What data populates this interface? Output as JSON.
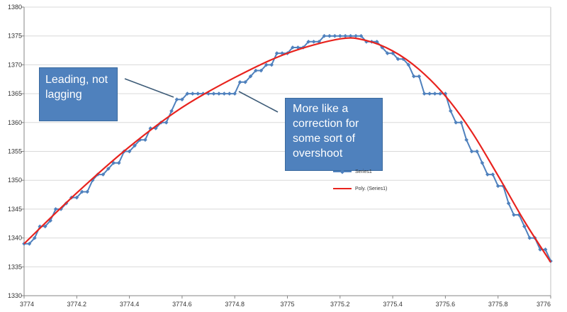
{
  "chart_data": {
    "type": "line",
    "title": "",
    "xlabel": "",
    "ylabel": "",
    "xlim": [
      3774,
      3776
    ],
    "ylim": [
      1330,
      1380
    ],
    "x_ticks": [
      "3774",
      "3774.2",
      "3774.4",
      "3774.6",
      "3774.8",
      "3775",
      "3775.2",
      "3775.4",
      "3775.6",
      "3775.8",
      "3776"
    ],
    "y_ticks": [
      "1330",
      "1335",
      "1340",
      "1345",
      "1350",
      "1355",
      "1360",
      "1365",
      "1370",
      "1375",
      "1380"
    ],
    "grid": "horizontal",
    "legend_position": "center-right",
    "series": [
      {
        "name": "Series1",
        "color": "#4f81bd",
        "marker": "diamond",
        "points": [
          [
            3774.0,
            1339
          ],
          [
            3774.02,
            1339
          ],
          [
            3774.04,
            1340
          ],
          [
            3774.06,
            1342
          ],
          [
            3774.08,
            1342
          ],
          [
            3774.1,
            1343
          ],
          [
            3774.12,
            1345
          ],
          [
            3774.14,
            1345
          ],
          [
            3774.16,
            1346
          ],
          [
            3774.18,
            1347
          ],
          [
            3774.2,
            1347
          ],
          [
            3774.22,
            1348
          ],
          [
            3774.24,
            1348
          ],
          [
            3774.26,
            1350
          ],
          [
            3774.28,
            1351
          ],
          [
            3774.3,
            1351
          ],
          [
            3774.32,
            1352
          ],
          [
            3774.34,
            1353
          ],
          [
            3774.36,
            1353
          ],
          [
            3774.38,
            1355
          ],
          [
            3774.4,
            1355
          ],
          [
            3774.42,
            1356
          ],
          [
            3774.44,
            1357
          ],
          [
            3774.46,
            1357
          ],
          [
            3774.48,
            1359
          ],
          [
            3774.5,
            1359
          ],
          [
            3774.52,
            1360
          ],
          [
            3774.54,
            1360
          ],
          [
            3774.56,
            1362
          ],
          [
            3774.58,
            1364
          ],
          [
            3774.6,
            1364
          ],
          [
            3774.62,
            1365
          ],
          [
            3774.64,
            1365
          ],
          [
            3774.66,
            1365
          ],
          [
            3774.68,
            1365
          ],
          [
            3774.7,
            1365
          ],
          [
            3774.72,
            1365
          ],
          [
            3774.74,
            1365
          ],
          [
            3774.76,
            1365
          ],
          [
            3774.78,
            1365
          ],
          [
            3774.8,
            1365
          ],
          [
            3774.82,
            1367
          ],
          [
            3774.84,
            1367
          ],
          [
            3774.86,
            1368
          ],
          [
            3774.88,
            1369
          ],
          [
            3774.9,
            1369
          ],
          [
            3774.92,
            1370
          ],
          [
            3774.94,
            1370
          ],
          [
            3774.96,
            1372
          ],
          [
            3774.98,
            1372
          ],
          [
            3775.0,
            1372
          ],
          [
            3775.02,
            1373
          ],
          [
            3775.04,
            1373
          ],
          [
            3775.06,
            1373
          ],
          [
            3775.08,
            1374
          ],
          [
            3775.1,
            1374
          ],
          [
            3775.12,
            1374
          ],
          [
            3775.14,
            1375
          ],
          [
            3775.16,
            1375
          ],
          [
            3775.18,
            1375
          ],
          [
            3775.2,
            1375
          ],
          [
            3775.22,
            1375
          ],
          [
            3775.24,
            1375
          ],
          [
            3775.26,
            1375
          ],
          [
            3775.28,
            1375
          ],
          [
            3775.3,
            1374
          ],
          [
            3775.32,
            1374
          ],
          [
            3775.34,
            1374
          ],
          [
            3775.36,
            1373
          ],
          [
            3775.38,
            1372
          ],
          [
            3775.4,
            1372
          ],
          [
            3775.42,
            1371
          ],
          [
            3775.44,
            1371
          ],
          [
            3775.46,
            1370
          ],
          [
            3775.48,
            1368
          ],
          [
            3775.5,
            1368
          ],
          [
            3775.52,
            1365
          ],
          [
            3775.54,
            1365
          ],
          [
            3775.56,
            1365
          ],
          [
            3775.58,
            1365
          ],
          [
            3775.6,
            1365
          ],
          [
            3775.62,
            1362
          ],
          [
            3775.64,
            1360
          ],
          [
            3775.66,
            1360
          ],
          [
            3775.68,
            1357
          ],
          [
            3775.7,
            1355
          ],
          [
            3775.72,
            1355
          ],
          [
            3775.74,
            1353
          ],
          [
            3775.76,
            1351
          ],
          [
            3775.78,
            1351
          ],
          [
            3775.8,
            1349
          ],
          [
            3775.82,
            1349
          ],
          [
            3775.84,
            1346
          ],
          [
            3775.86,
            1344
          ],
          [
            3775.88,
            1344
          ],
          [
            3775.9,
            1342
          ],
          [
            3775.92,
            1340
          ],
          [
            3775.94,
            1340
          ],
          [
            3775.96,
            1338
          ],
          [
            3775.98,
            1338
          ],
          [
            3776.0,
            1336
          ]
        ]
      },
      {
        "name": "Poly. (Series1)",
        "color": "#e8231e",
        "kind": "polynomial trendline",
        "points": [
          [
            3774.0,
            1339
          ],
          [
            3774.2,
            1347.8
          ],
          [
            3774.4,
            1355.8
          ],
          [
            3774.6,
            1362.6
          ],
          [
            3774.8,
            1367.8
          ],
          [
            3775.0,
            1372
          ],
          [
            3775.2,
            1374.5
          ],
          [
            3775.3,
            1374.2
          ],
          [
            3775.4,
            1372.4
          ],
          [
            3775.5,
            1369.2
          ],
          [
            3775.6,
            1364.6
          ],
          [
            3775.7,
            1358.4
          ],
          [
            3775.8,
            1350.8
          ],
          [
            3775.9,
            1342.9
          ],
          [
            3776.0,
            1335.8
          ]
        ]
      }
    ],
    "annotations": [
      {
        "text": "Leading, not lagging",
        "points_to": [
          3774.59,
          1364
        ]
      },
      {
        "text": "More like a correction for some sort of overshoot",
        "points_to": [
          3774.78,
          1366
        ]
      }
    ]
  }
}
